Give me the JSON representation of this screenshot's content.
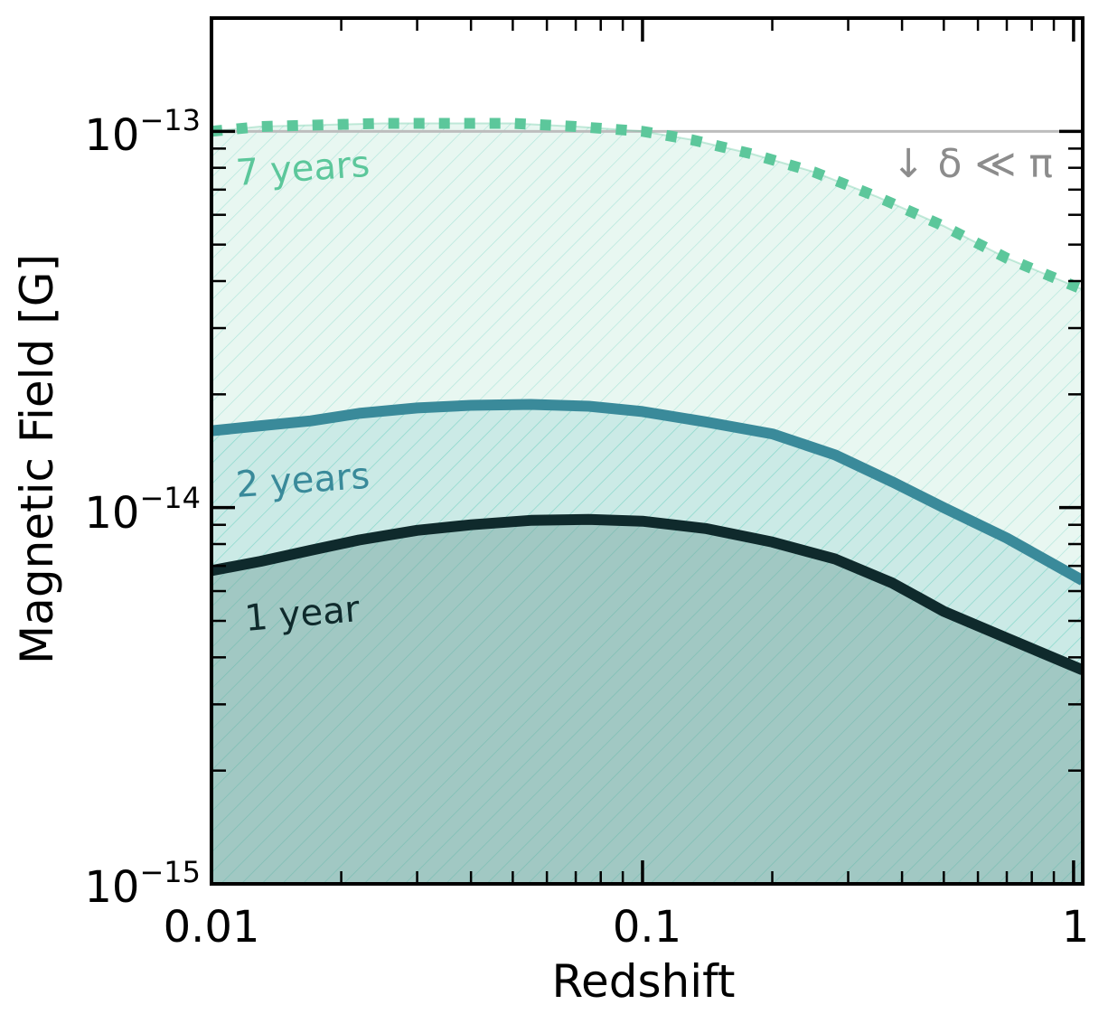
{
  "chart_data": {
    "type": "area",
    "xlabel": "Redshift",
    "ylabel": "Magnetic Field [G]",
    "xscale": "log",
    "yscale": "log",
    "xlim": [
      0.01,
      1.05
    ],
    "ylim": [
      1e-15,
      2e-13
    ],
    "x_tick_labels": [
      "0.01",
      "0.1",
      "1"
    ],
    "y_tick_labels": [
      {
        "base": "10",
        "exp": "−13"
      },
      {
        "base": "10",
        "exp": "−14"
      },
      {
        "base": "10",
        "exp": "−15"
      }
    ],
    "series": [
      {
        "name": "7 years",
        "style": "dotted",
        "color": "#5cc79b",
        "fill": "#5cc79b",
        "hatched": true,
        "x": [
          0.01,
          0.013,
          0.018,
          0.025,
          0.035,
          0.05,
          0.07,
          0.1,
          0.13,
          0.18,
          0.25,
          0.35,
          0.5,
          0.7,
          1.05
        ],
        "y": [
          1e-13,
          1.03e-13,
          1.04e-13,
          1.05e-13,
          1.05e-13,
          1.05e-13,
          1.03e-13,
          1e-13,
          9.5e-14,
          8.7e-14,
          7.8e-14,
          6.7e-14,
          5.6e-14,
          4.6e-14,
          3.8e-14
        ]
      },
      {
        "name": "2 years",
        "style": "solid",
        "color": "#3a8a9a",
        "fill": "#3aaab0",
        "hatched": true,
        "x": [
          0.01,
          0.013,
          0.017,
          0.022,
          0.03,
          0.04,
          0.055,
          0.075,
          0.1,
          0.14,
          0.2,
          0.28,
          0.38,
          0.5,
          0.7,
          1.05
        ],
        "y": [
          1.6e-14,
          1.65e-14,
          1.7e-14,
          1.78e-14,
          1.84e-14,
          1.87e-14,
          1.88e-14,
          1.86e-14,
          1.8e-14,
          1.69e-14,
          1.57e-14,
          1.38e-14,
          1.17e-14,
          1e-14,
          8.3e-15,
          6.4e-15
        ]
      },
      {
        "name": "1 year",
        "style": "solid",
        "color": "#0f2a2c",
        "fill": "#6f9f9a",
        "hatched": false,
        "x": [
          0.01,
          0.013,
          0.017,
          0.022,
          0.03,
          0.04,
          0.055,
          0.075,
          0.1,
          0.14,
          0.2,
          0.28,
          0.38,
          0.5,
          0.7,
          1.05
        ],
        "y": [
          6.8e-15,
          7.2e-15,
          7.7e-15,
          8.2e-15,
          8.7e-15,
          9e-15,
          9.25e-15,
          9.3e-15,
          9.2e-15,
          8.8e-15,
          8.1e-15,
          7.3e-15,
          6.3e-15,
          5.3e-15,
          4.5e-15,
          3.7e-15
        ]
      }
    ],
    "reference_line": {
      "y": 1e-13,
      "color": "#bdbdbd"
    },
    "annotations": [
      {
        "text": "7 years",
        "series": 0
      },
      {
        "text": "2 years",
        "series": 1
      },
      {
        "text": "1 year",
        "series": 2
      },
      {
        "text": "↓ δ ≪ π",
        "color": "#8c8c8c"
      }
    ],
    "grid": false,
    "legend": "none (inline labels)"
  }
}
